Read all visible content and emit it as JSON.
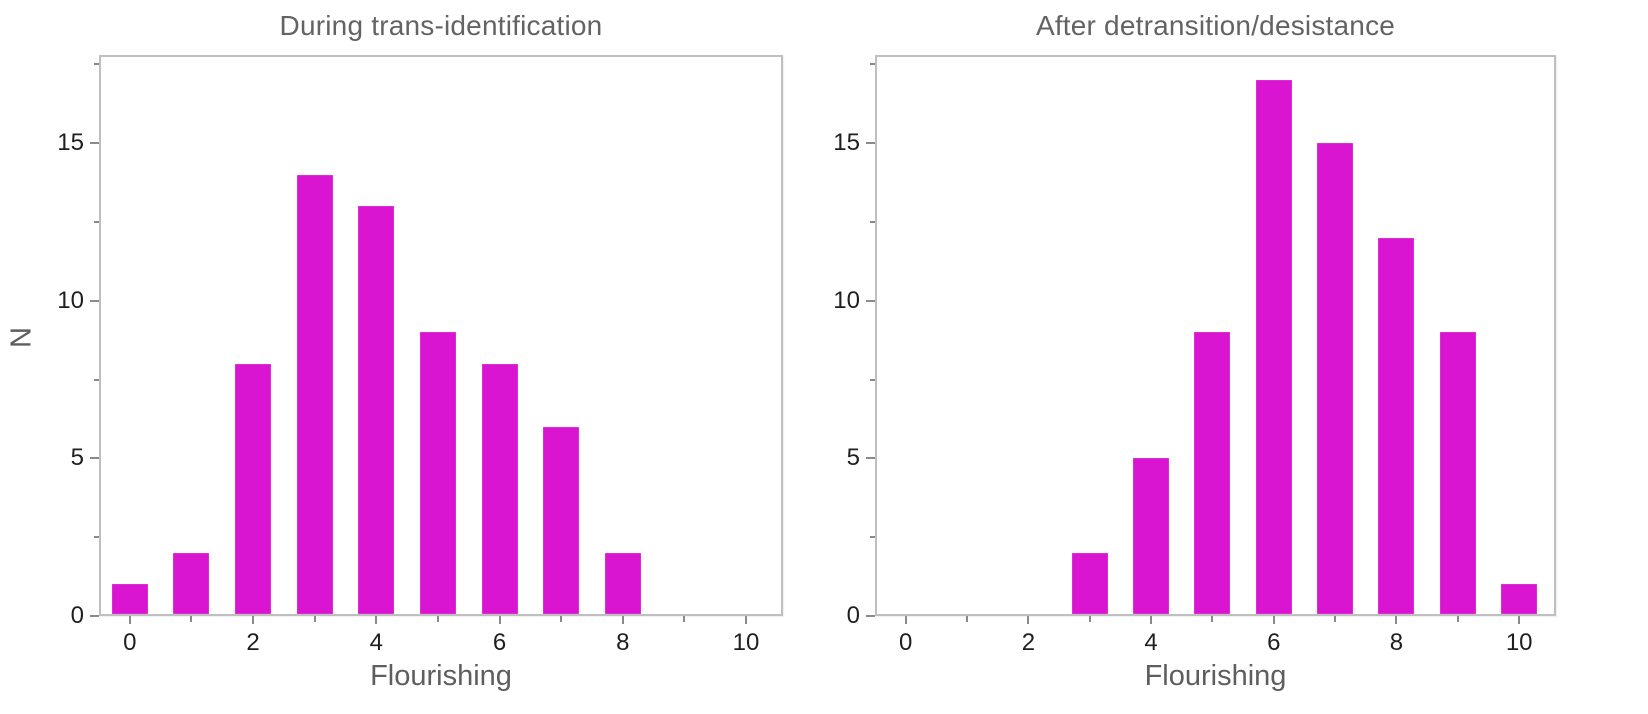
{
  "page": {
    "background": "#ffffff"
  },
  "colors": {
    "bar_fill": "#DA15D2",
    "frame_border": "#bfbfbf",
    "tick_mark": "#8a8a8a",
    "tick_label": "#1f1f1f",
    "title_text": "#636363",
    "axis_label_text": "#5e5e5e"
  },
  "chart_data": [
    {
      "type": "bar",
      "title": "During trans-identification",
      "xlabel": "Flourishing",
      "ylabel": "N",
      "categories": [
        0,
        1,
        2,
        3,
        4,
        5,
        6,
        7,
        8,
        9,
        10
      ],
      "values": [
        1,
        2,
        8,
        14,
        13,
        9,
        8,
        6,
        2,
        0,
        0
      ],
      "xlim": [
        -0.5,
        10.6
      ],
      "ylim": [
        0,
        17.8
      ],
      "x_major_ticks": [
        {
          "v": 0,
          "label": "0"
        },
        {
          "v": 2,
          "label": "2"
        },
        {
          "v": 4,
          "label": "4"
        },
        {
          "v": 6,
          "label": "6"
        },
        {
          "v": 8,
          "label": "8"
        },
        {
          "v": 10,
          "label": "10"
        }
      ],
      "x_minor_ticks": [
        1,
        3,
        5,
        7,
        9
      ],
      "y_major_ticks": [
        {
          "v": 0,
          "label": "0"
        },
        {
          "v": 5,
          "label": "5"
        },
        {
          "v": 10,
          "label": "10"
        },
        {
          "v": 15,
          "label": "15"
        }
      ],
      "y_minor_ticks": [
        2.5,
        7.5,
        12.5,
        17.5
      ],
      "grid": false,
      "legend": false
    },
    {
      "type": "bar",
      "title": "After detransition/desistance",
      "xlabel": "Flourishing",
      "ylabel": "",
      "categories": [
        0,
        1,
        2,
        3,
        4,
        5,
        6,
        7,
        8,
        9,
        10
      ],
      "values": [
        0,
        0,
        0,
        2,
        5,
        9,
        17,
        15,
        12,
        9,
        1
      ],
      "xlim": [
        -0.5,
        10.6
      ],
      "ylim": [
        0,
        17.8
      ],
      "x_major_ticks": [
        {
          "v": 0,
          "label": "0"
        },
        {
          "v": 2,
          "label": "2"
        },
        {
          "v": 4,
          "label": "4"
        },
        {
          "v": 6,
          "label": "6"
        },
        {
          "v": 8,
          "label": "8"
        },
        {
          "v": 10,
          "label": "10"
        }
      ],
      "x_minor_ticks": [
        1,
        3,
        5,
        7,
        9
      ],
      "y_major_ticks": [
        {
          "v": 0,
          "label": "0"
        },
        {
          "v": 5,
          "label": "5"
        },
        {
          "v": 10,
          "label": "10"
        },
        {
          "v": 15,
          "label": "15"
        }
      ],
      "y_minor_ticks": [
        2.5,
        7.5,
        12.5,
        17.5
      ],
      "grid": false,
      "legend": false
    }
  ]
}
